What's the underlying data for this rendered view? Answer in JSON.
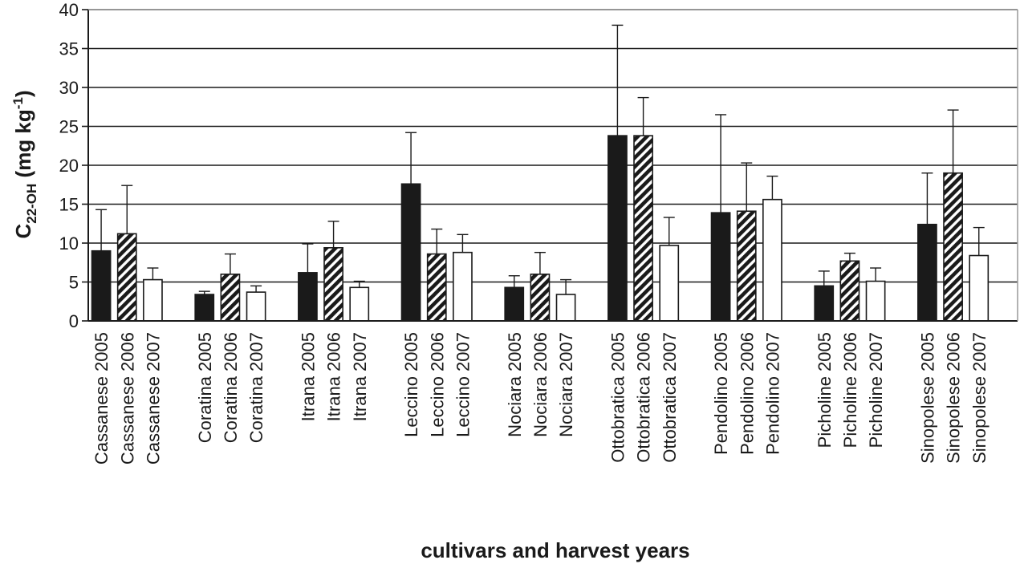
{
  "chart_data": {
    "type": "bar",
    "title": "",
    "xlabel": "cultivars and harvest years",
    "ylabel": {
      "main": "C",
      "subscript": "22-OH",
      "unit_prefix": " (mg kg",
      "superscript": "-1",
      "unit_suffix": ")"
    },
    "ylim": [
      0,
      40
    ],
    "yticks": [
      0,
      5,
      10,
      15,
      20,
      25,
      30,
      35,
      40
    ],
    "grid": true,
    "legend": "none",
    "series_styles": [
      {
        "year": "2005",
        "fill": "#1a1a1a",
        "pattern": "solid"
      },
      {
        "year": "2006",
        "fill": "#1a1a1a",
        "pattern": "diagonal-stripes"
      },
      {
        "year": "2007",
        "fill": "#ffffff",
        "pattern": "none"
      }
    ],
    "groups": [
      {
        "cultivar": "Cassanese",
        "bars": [
          {
            "label": "Cassanese 2005",
            "value": 9.0,
            "error": 5.3
          },
          {
            "label": "Cassanese 2006",
            "value": 11.2,
            "error": 6.2
          },
          {
            "label": "Cassanese 2007",
            "value": 5.3,
            "error": 1.5
          }
        ]
      },
      {
        "cultivar": "Coratina",
        "bars": [
          {
            "label": "Coratina 2005",
            "value": 3.4,
            "error": 0.4
          },
          {
            "label": "Coratina 2006",
            "value": 6.0,
            "error": 2.6
          },
          {
            "label": "Coratina 2007",
            "value": 3.7,
            "error": 0.8
          }
        ]
      },
      {
        "cultivar": "Itrana",
        "bars": [
          {
            "label": "Itrana 2005",
            "value": 6.2,
            "error": 3.7
          },
          {
            "label": "Itrana 2006",
            "value": 9.4,
            "error": 3.4
          },
          {
            "label": "Itrana 2007",
            "value": 4.3,
            "error": 0.8
          }
        ]
      },
      {
        "cultivar": "Leccino",
        "bars": [
          {
            "label": "Leccino 2005",
            "value": 17.6,
            "error": 6.6
          },
          {
            "label": "Leccino 2006",
            "value": 8.6,
            "error": 3.2
          },
          {
            "label": "Leccino 2007",
            "value": 8.8,
            "error": 2.3
          }
        ]
      },
      {
        "cultivar": "Nociara",
        "bars": [
          {
            "label": "Nociara 2005",
            "value": 4.3,
            "error": 1.5
          },
          {
            "label": "Nociara 2006",
            "value": 6.0,
            "error": 2.8
          },
          {
            "label": "Nociara 2007",
            "value": 3.4,
            "error": 1.9
          }
        ]
      },
      {
        "cultivar": "Ottobratica",
        "bars": [
          {
            "label": "Ottobratica 2005",
            "value": 23.8,
            "error": 14.2
          },
          {
            "label": "Ottobratica 2006",
            "value": 23.8,
            "error": 4.9
          },
          {
            "label": "Ottobratica 2007",
            "value": 9.7,
            "error": 3.6
          }
        ]
      },
      {
        "cultivar": "Pendolino",
        "bars": [
          {
            "label": "Pendolino 2005",
            "value": 13.9,
            "error": 12.6
          },
          {
            "label": "Pendolino 2006",
            "value": 14.1,
            "error": 6.2
          },
          {
            "label": "Pendolino 2007",
            "value": 15.6,
            "error": 3.0
          }
        ]
      },
      {
        "cultivar": "Picholine",
        "bars": [
          {
            "label": "Picholine 2005",
            "value": 4.5,
            "error": 1.9
          },
          {
            "label": "Picholine 2006",
            "value": 7.7,
            "error": 1.0
          },
          {
            "label": "Picholine 2007",
            "value": 5.1,
            "error": 1.7
          }
        ]
      },
      {
        "cultivar": "Sinopolese",
        "bars": [
          {
            "label": "Sinopolese 2005",
            "value": 12.4,
            "error": 6.6
          },
          {
            "label": "Sinopolese 2006",
            "value": 19.0,
            "error": 8.1
          },
          {
            "label": "Sinopolese 2007",
            "value": 8.4,
            "error": 3.6
          }
        ]
      }
    ]
  }
}
